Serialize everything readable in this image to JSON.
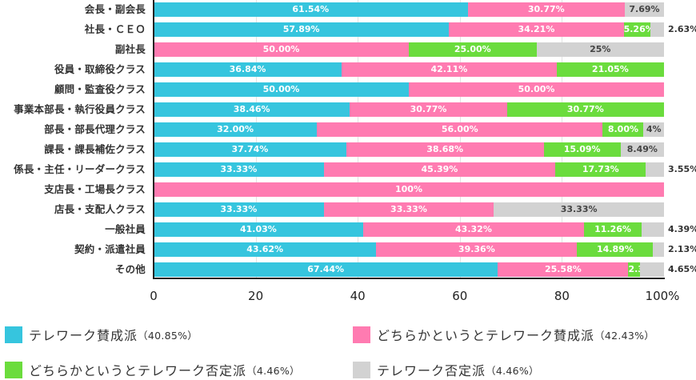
{
  "chart_data": {
    "type": "bar",
    "orientation": "horizontal",
    "stacked": true,
    "title": "",
    "xlabel": "",
    "ylabel": "",
    "xlim": [
      0,
      100
    ],
    "x_ticks": [
      "0",
      "20",
      "40",
      "60",
      "80",
      "100%"
    ],
    "grid": true,
    "legend_position": "bottom",
    "categories": [
      "会長・副会長",
      "社長・ＣＥＯ",
      "副社長",
      "役員・取締役クラス",
      "顧問・監査役クラス",
      "事業本部長・執行役員クラス",
      "部長・部長代理クラス",
      "課長・課長補佐クラス",
      "係長・主任・リーダークラス",
      "支店長・工場長クラス",
      "店長・支配人クラス",
      "一般社員",
      "契約・派遣社員",
      "その他"
    ],
    "series": [
      {
        "name": "テレワーク賛成派",
        "total": "40.85%",
        "color": "#36c5de",
        "values": [
          61.54,
          57.89,
          0,
          36.84,
          50.0,
          38.46,
          32.0,
          37.74,
          33.33,
          0,
          33.33,
          41.03,
          43.62,
          67.44
        ],
        "labels": [
          "61.54%",
          "57.89%",
          "",
          "36.84%",
          "50.00%",
          "38.46%",
          "32.00%",
          "37.74%",
          "33.33%",
          "",
          "33.33%",
          "41.03%",
          "43.62%",
          "67.44%"
        ]
      },
      {
        "name": "どちらかというとテレワーク賛成派",
        "total": "42.43%",
        "color": "#ff7bb1",
        "values": [
          30.77,
          34.21,
          50.0,
          42.11,
          50.0,
          30.77,
          56.0,
          38.68,
          45.39,
          100,
          33.33,
          43.32,
          39.36,
          25.58
        ],
        "labels": [
          "30.77%",
          "34.21%",
          "50.00%",
          "42.11%",
          "50.00%",
          "30.77%",
          "56.00%",
          "38.68%",
          "45.39%",
          "100%",
          "33.33%",
          "43.32%",
          "39.36%",
          "25.58%"
        ]
      },
      {
        "name": "どちらかというとテレワーク否定派",
        "total": "4.46%",
        "color": "#6bdc3d",
        "values": [
          0,
          5.26,
          25.0,
          21.05,
          0,
          30.77,
          8.0,
          15.09,
          17.73,
          0,
          0,
          11.26,
          14.89,
          2.33
        ],
        "labels": [
          "",
          "5.26%",
          "25.00%",
          "21.05%",
          "",
          "30.77%",
          "8.00%",
          "15.09%",
          "17.73%",
          "",
          "",
          "11.26%",
          "14.89%",
          "2.33%"
        ]
      },
      {
        "name": "テレワーク否定派",
        "total": "4.46%",
        "color": "#d2d2d2",
        "values": [
          7.69,
          2.63,
          25.0,
          0,
          0,
          0,
          4.0,
          8.49,
          3.55,
          0,
          33.33,
          4.39,
          2.13,
          4.65
        ],
        "labels": [
          "7.69%",
          "2.63%",
          "25%",
          "",
          "",
          "",
          "4%",
          "8.49%",
          "3.55%",
          "",
          "33.33%",
          "4.39%",
          "2.13%",
          "4.65%"
        ],
        "label_outside": [
          false,
          true,
          false,
          false,
          false,
          false,
          false,
          false,
          true,
          false,
          false,
          true,
          true,
          true
        ]
      }
    ]
  },
  "legend": [
    {
      "label": "テレワーク賛成派",
      "pct": "（40.85%）",
      "color": "#36c5de"
    },
    {
      "label": "どちらかというとテレワーク賛成派",
      "pct": "（42.43%）",
      "color": "#ff7bb1"
    },
    {
      "label": "どちらかというとテレワーク否定派",
      "pct": "（4.46%）",
      "color": "#6bdc3d"
    },
    {
      "label": "テレワーク否定派",
      "pct": "（4.46%）",
      "color": "#d2d2d2"
    }
  ]
}
